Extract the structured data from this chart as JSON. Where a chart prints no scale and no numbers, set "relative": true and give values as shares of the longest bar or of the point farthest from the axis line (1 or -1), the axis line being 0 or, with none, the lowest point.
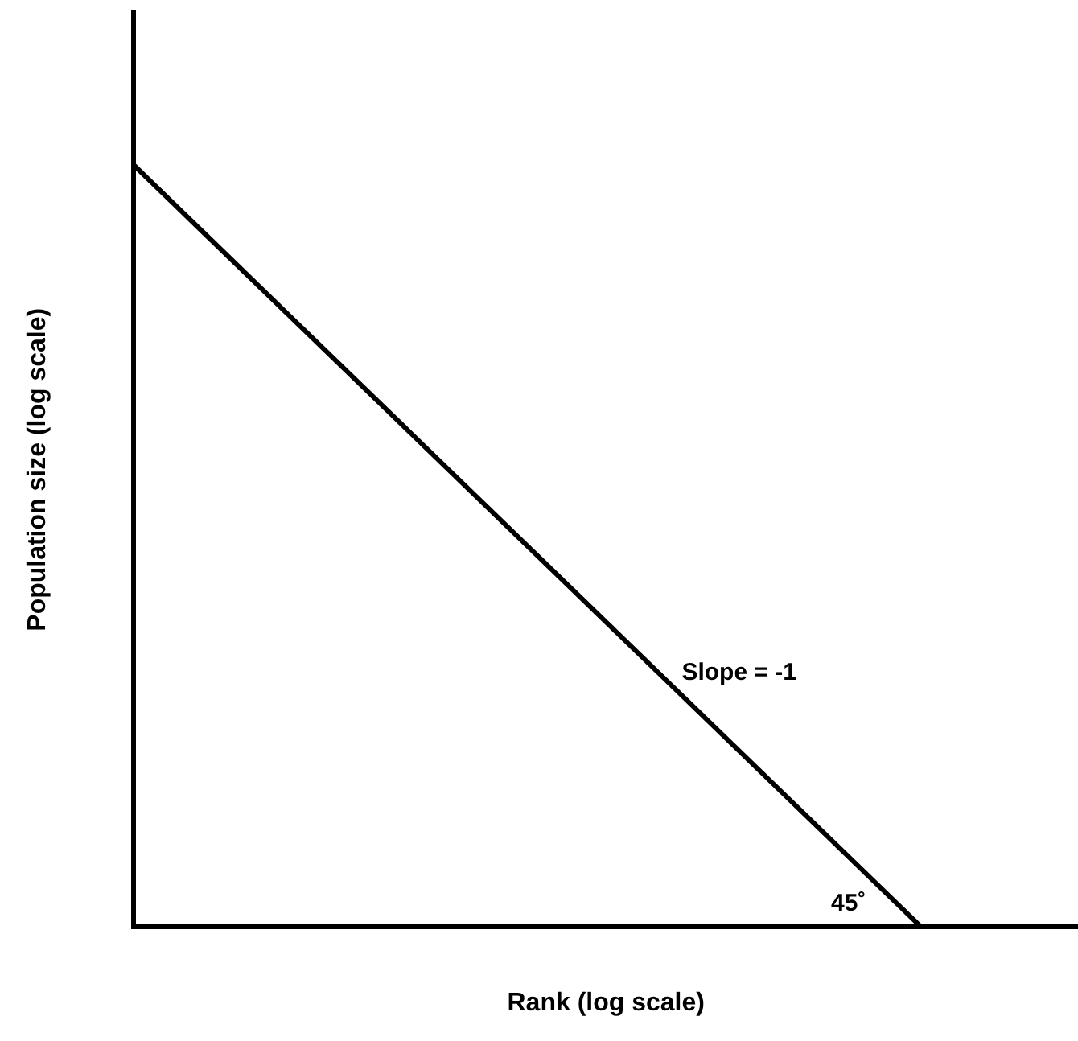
{
  "chart_data": {
    "type": "line",
    "relative": true,
    "xlabel": "Rank (log scale)",
    "ylabel": "Population size (log scale)",
    "categories": [
      null,
      null,
      null,
      null,
      null,
      null,
      null
    ],
    "series": [
      {
        "color": "#000000",
        "values": [
          1,
          0.8,
          0.6,
          0.4,
          0.2,
          0,
          null
        ]
      }
    ],
    "annotations": [
      "Slope = -1",
      "45˚"
    ],
    "grid": false,
    "legend": false,
    "marker": "none",
    "line_style": "solid"
  }
}
